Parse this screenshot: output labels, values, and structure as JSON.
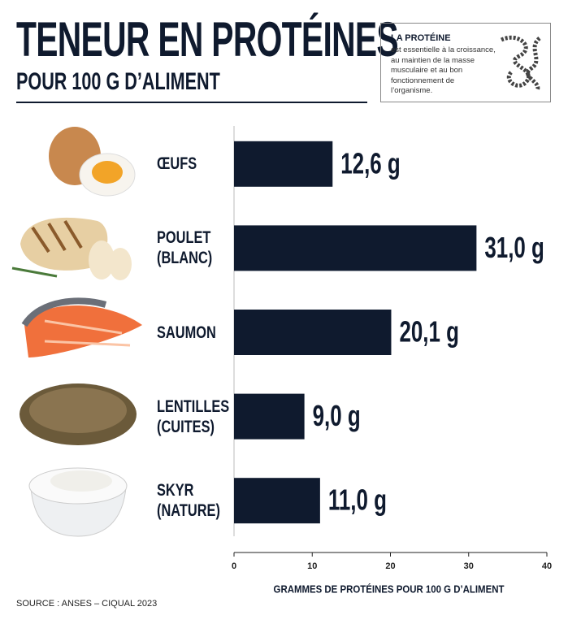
{
  "chart_data": {
    "type": "bar",
    "orientation": "horizontal",
    "title": "TENEUR EN PROTÉINES",
    "subtitle": "POUR 100 G D’ALIMENT",
    "annotation": {
      "title": "LA PROTÉINE",
      "text": "est essentielle à la croissance, au maintien de la masse musculaire et au bon fonctionnement de l’organisme."
    },
    "categories": [
      "ŒUFS",
      "POULET (BLANC)",
      "SAUMON",
      "LENTILLES (CUITES)",
      "SKYR (NATURE)"
    ],
    "values": [
      12.6,
      31.0,
      20.1,
      9.0,
      11.0
    ],
    "value_labels": [
      "12,6 g",
      "31,0 g",
      "20,1 g",
      "9,0 g",
      "11,0 g"
    ],
    "color": "#0f1a2e",
    "xlim": [
      0,
      40
    ],
    "xticks": [
      0,
      10,
      20,
      30,
      40
    ],
    "xlabel": "GRAMMES DE PROTÉINES POUR 100 G D’ALIMENT",
    "source": "SOURCE : ANSES – CIQUAL 2023"
  }
}
